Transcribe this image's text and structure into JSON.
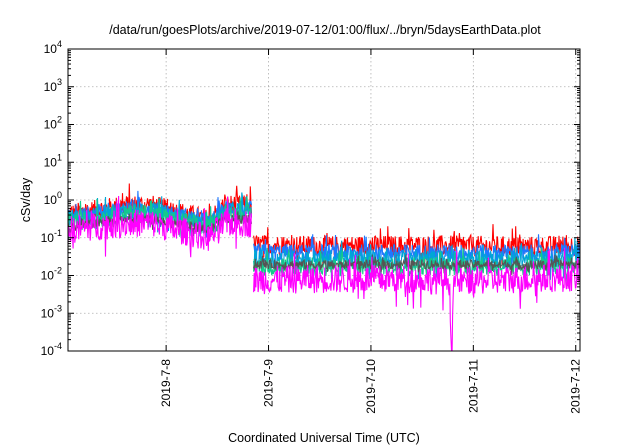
{
  "chart_data": {
    "type": "line",
    "title": "/data/run/goesPlots/archive/2019-07-12/01:00/flux/../bryn/5daysEarthData.plot",
    "xlabel": "Coordinated Universal Time (UTC)",
    "ylabel": "cSv/day",
    "yscale": "log",
    "ylim": [
      0.0001,
      10000
    ],
    "xlim": [
      "2019-07-07 01:00",
      "2019-07-12 01:00"
    ],
    "y_ticks": [
      {
        "base": "10",
        "exp": "-4"
      },
      {
        "base": "10",
        "exp": "-3"
      },
      {
        "base": "10",
        "exp": "-2"
      },
      {
        "base": "10",
        "exp": "-1"
      },
      {
        "base": "10",
        "exp": "0"
      },
      {
        "base": "10",
        "exp": "1"
      },
      {
        "base": "10",
        "exp": "2"
      },
      {
        "base": "10",
        "exp": "3"
      },
      {
        "base": "10",
        "exp": "4"
      }
    ],
    "x_ticks": [
      "2019-7-8",
      "2019-7-9",
      "2019-7-10",
      "2019-7-11",
      "2019-7-12"
    ],
    "grid": true,
    "legend": "none",
    "series": [
      {
        "color": "#ff0000",
        "noise": 0.55,
        "segments": [
          {
            "x": [
              "2019-07-07 01:00",
              "2019-07-07 08:00",
              "2019-07-07 14:00",
              "2019-07-07 20:00",
              "2019-07-08 04:00",
              "2019-07-08 10:00",
              "2019-07-08 14:00",
              "2019-07-08 20:00"
            ],
            "y": [
              0.42,
              0.55,
              0.72,
              0.75,
              0.45,
              0.3,
              0.75,
              0.7
            ]
          },
          {
            "x": [
              "2019-07-08 20:30",
              "2019-07-09 12:00",
              "2019-07-10 12:00",
              "2019-07-11 12:00",
              "2019-07-12 01:00"
            ],
            "y": [
              0.065,
              0.06,
              0.062,
              0.058,
              0.062
            ]
          }
        ]
      },
      {
        "color": "#1f77ff",
        "noise": 0.45,
        "segments": [
          {
            "x": [
              "2019-07-07 01:00",
              "2019-07-07 08:00",
              "2019-07-07 14:00",
              "2019-07-07 20:00",
              "2019-07-08 04:00",
              "2019-07-08 10:00",
              "2019-07-08 14:00",
              "2019-07-08 20:00"
            ],
            "y": [
              0.35,
              0.45,
              0.6,
              0.62,
              0.38,
              0.25,
              0.6,
              0.58
            ]
          },
          {
            "x": [
              "2019-07-08 20:30",
              "2019-07-09 12:00",
              "2019-07-10 12:00",
              "2019-07-11 12:00",
              "2019-07-12 01:00"
            ],
            "y": [
              0.042,
              0.04,
              0.041,
              0.039,
              0.042
            ]
          }
        ]
      },
      {
        "color": "#00a6d6",
        "noise": 0.5,
        "segments": [
          {
            "x": [
              "2019-07-07 01:00",
              "2019-07-07 08:00",
              "2019-07-07 14:00",
              "2019-07-07 20:00",
              "2019-07-08 04:00",
              "2019-07-08 10:00",
              "2019-07-08 14:00",
              "2019-07-08 20:00"
            ],
            "y": [
              0.3,
              0.38,
              0.5,
              0.52,
              0.32,
              0.21,
              0.52,
              0.5
            ]
          },
          {
            "x": [
              "2019-07-08 20:30",
              "2019-07-09 12:00",
              "2019-07-10 12:00",
              "2019-07-11 12:00",
              "2019-07-12 01:00"
            ],
            "y": [
              0.028,
              0.027,
              0.027,
              0.026,
              0.028
            ]
          }
        ]
      },
      {
        "color": "#14c98a",
        "noise": 0.5,
        "segments": [
          {
            "x": [
              "2019-07-07 01:00",
              "2019-07-07 08:00",
              "2019-07-07 14:00",
              "2019-07-07 20:00",
              "2019-07-08 04:00",
              "2019-07-08 10:00",
              "2019-07-08 14:00",
              "2019-07-08 20:00"
            ],
            "y": [
              0.26,
              0.32,
              0.42,
              0.44,
              0.27,
              0.18,
              0.44,
              0.42
            ]
          },
          {
            "x": [
              "2019-07-08 20:30",
              "2019-07-09 12:00",
              "2019-07-10 12:00",
              "2019-07-11 12:00",
              "2019-07-12 01:00"
            ],
            "y": [
              0.018,
              0.017,
              0.018,
              0.017,
              0.018
            ]
          }
        ]
      },
      {
        "color": "#555555",
        "noise": 0.25,
        "segments": [
          {
            "x": [
              "2019-07-07 01:00",
              "2019-07-07 08:00",
              "2019-07-07 14:00",
              "2019-07-07 20:00",
              "2019-07-08 04:00",
              "2019-07-08 10:00",
              "2019-07-08 14:00",
              "2019-07-08 20:00"
            ],
            "y": [
              0.2,
              0.24,
              0.3,
              0.3,
              0.22,
              0.16,
              0.3,
              0.3
            ]
          },
          {
            "x": [
              "2019-07-08 20:30",
              "2019-07-09 12:00",
              "2019-07-10 12:00",
              "2019-07-11 12:00",
              "2019-07-12 01:00"
            ],
            "y": [
              0.02,
              0.019,
              0.02,
              0.019,
              0.02
            ]
          }
        ]
      },
      {
        "color": "#ff00ff",
        "noise": 0.75,
        "segments": [
          {
            "x": [
              "2019-07-07 01:00",
              "2019-07-07 08:00",
              "2019-07-07 14:00",
              "2019-07-07 20:00",
              "2019-07-08 04:00",
              "2019-07-08 10:00",
              "2019-07-08 14:00",
              "2019-07-08 20:00"
            ],
            "y": [
              0.16,
              0.2,
              0.24,
              0.25,
              0.15,
              0.1,
              0.25,
              0.24
            ]
          },
          {
            "x": [
              "2019-07-08 20:30",
              "2019-07-09 12:00",
              "2019-07-10 12:00",
              "2019-07-10 18:30",
              "2019-07-10 18:45",
              "2019-07-10 19:00",
              "2019-07-10 19:15",
              "2019-07-11 12:00",
              "2019-07-12 01:00"
            ],
            "y": [
              0.0075,
              0.008,
              0.008,
              0.007,
              0.0001,
              0.0001,
              0.007,
              0.008,
              0.009
            ]
          }
        ]
      }
    ]
  }
}
